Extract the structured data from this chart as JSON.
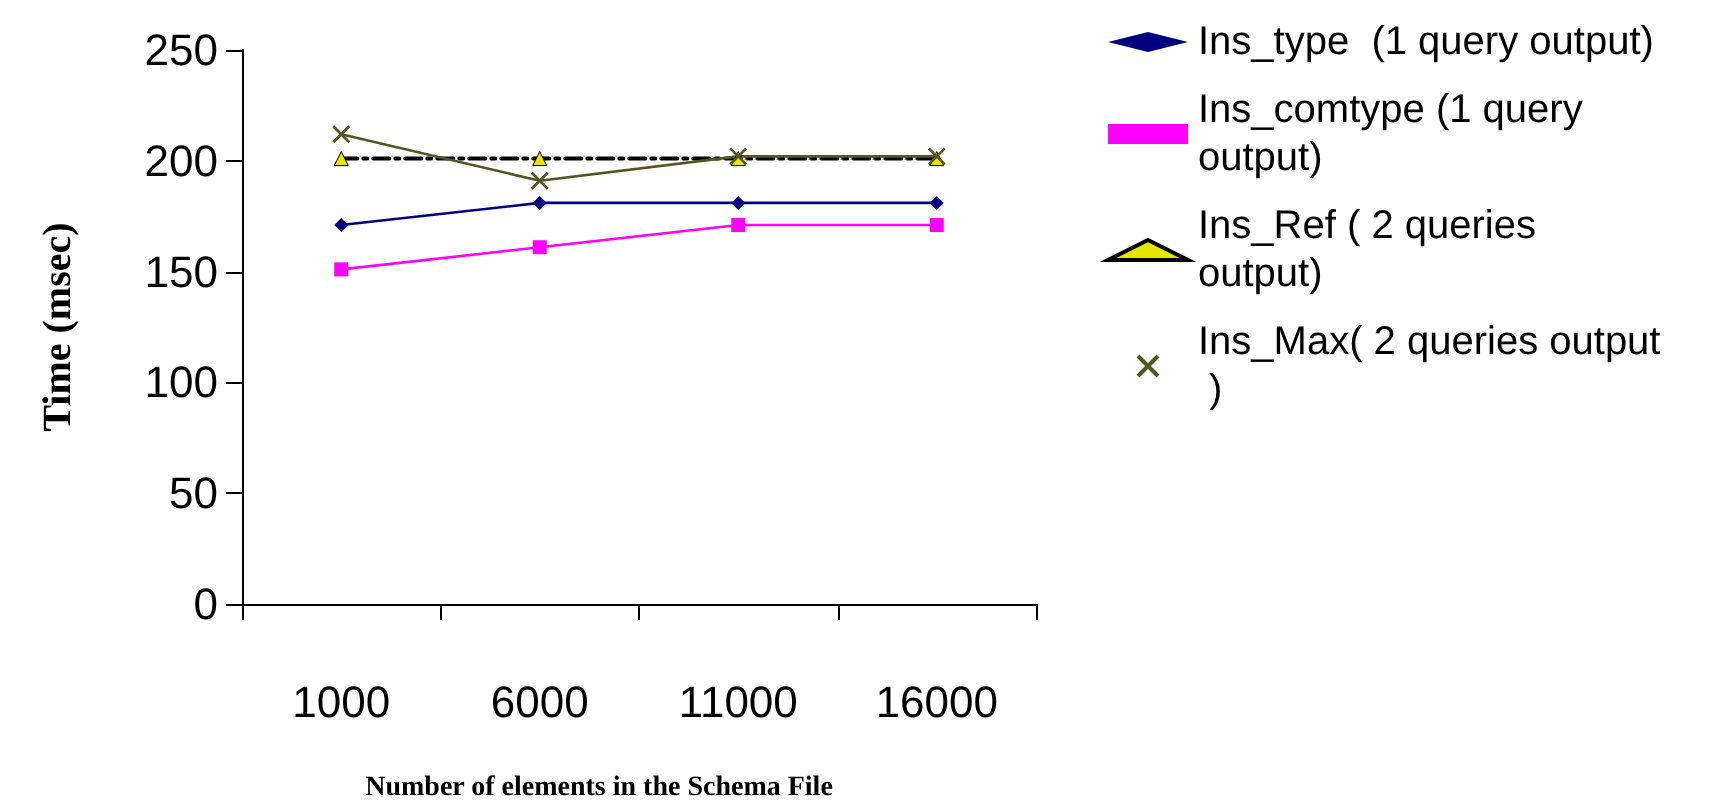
{
  "chart_data": {
    "type": "line",
    "xlabel": "Number of elements in the Schema File",
    "ylabel": "Time (msec)",
    "categories": [
      "1000",
      "6000",
      "11000",
      "16000"
    ],
    "ylim": [
      0,
      250
    ],
    "yticks": [
      0,
      50,
      100,
      150,
      200,
      250
    ],
    "grid": false,
    "legend": "right",
    "series": [
      {
        "name": "Ins_type  (1 query output)",
        "color": "#000080",
        "marker": "diamond",
        "line_style": "solid",
        "values": [
          171,
          181,
          181,
          181
        ]
      },
      {
        "name": "Ins_comtype (1 query output)",
        "color": "#ff00ff",
        "marker": "square",
        "line_style": "solid",
        "values": [
          151,
          161,
          171,
          171
        ]
      },
      {
        "name": "Ins_Ref ( 2 queries output)",
        "color": "#000000",
        "marker": "triangle",
        "line_style": "dashed",
        "values": [
          201,
          201,
          201,
          201
        ]
      },
      {
        "name": "Ins_Max( 2 queries output )",
        "color": "#555522",
        "marker": "cross",
        "line_style": "solid",
        "values": [
          212,
          191,
          202,
          202
        ]
      }
    ]
  }
}
